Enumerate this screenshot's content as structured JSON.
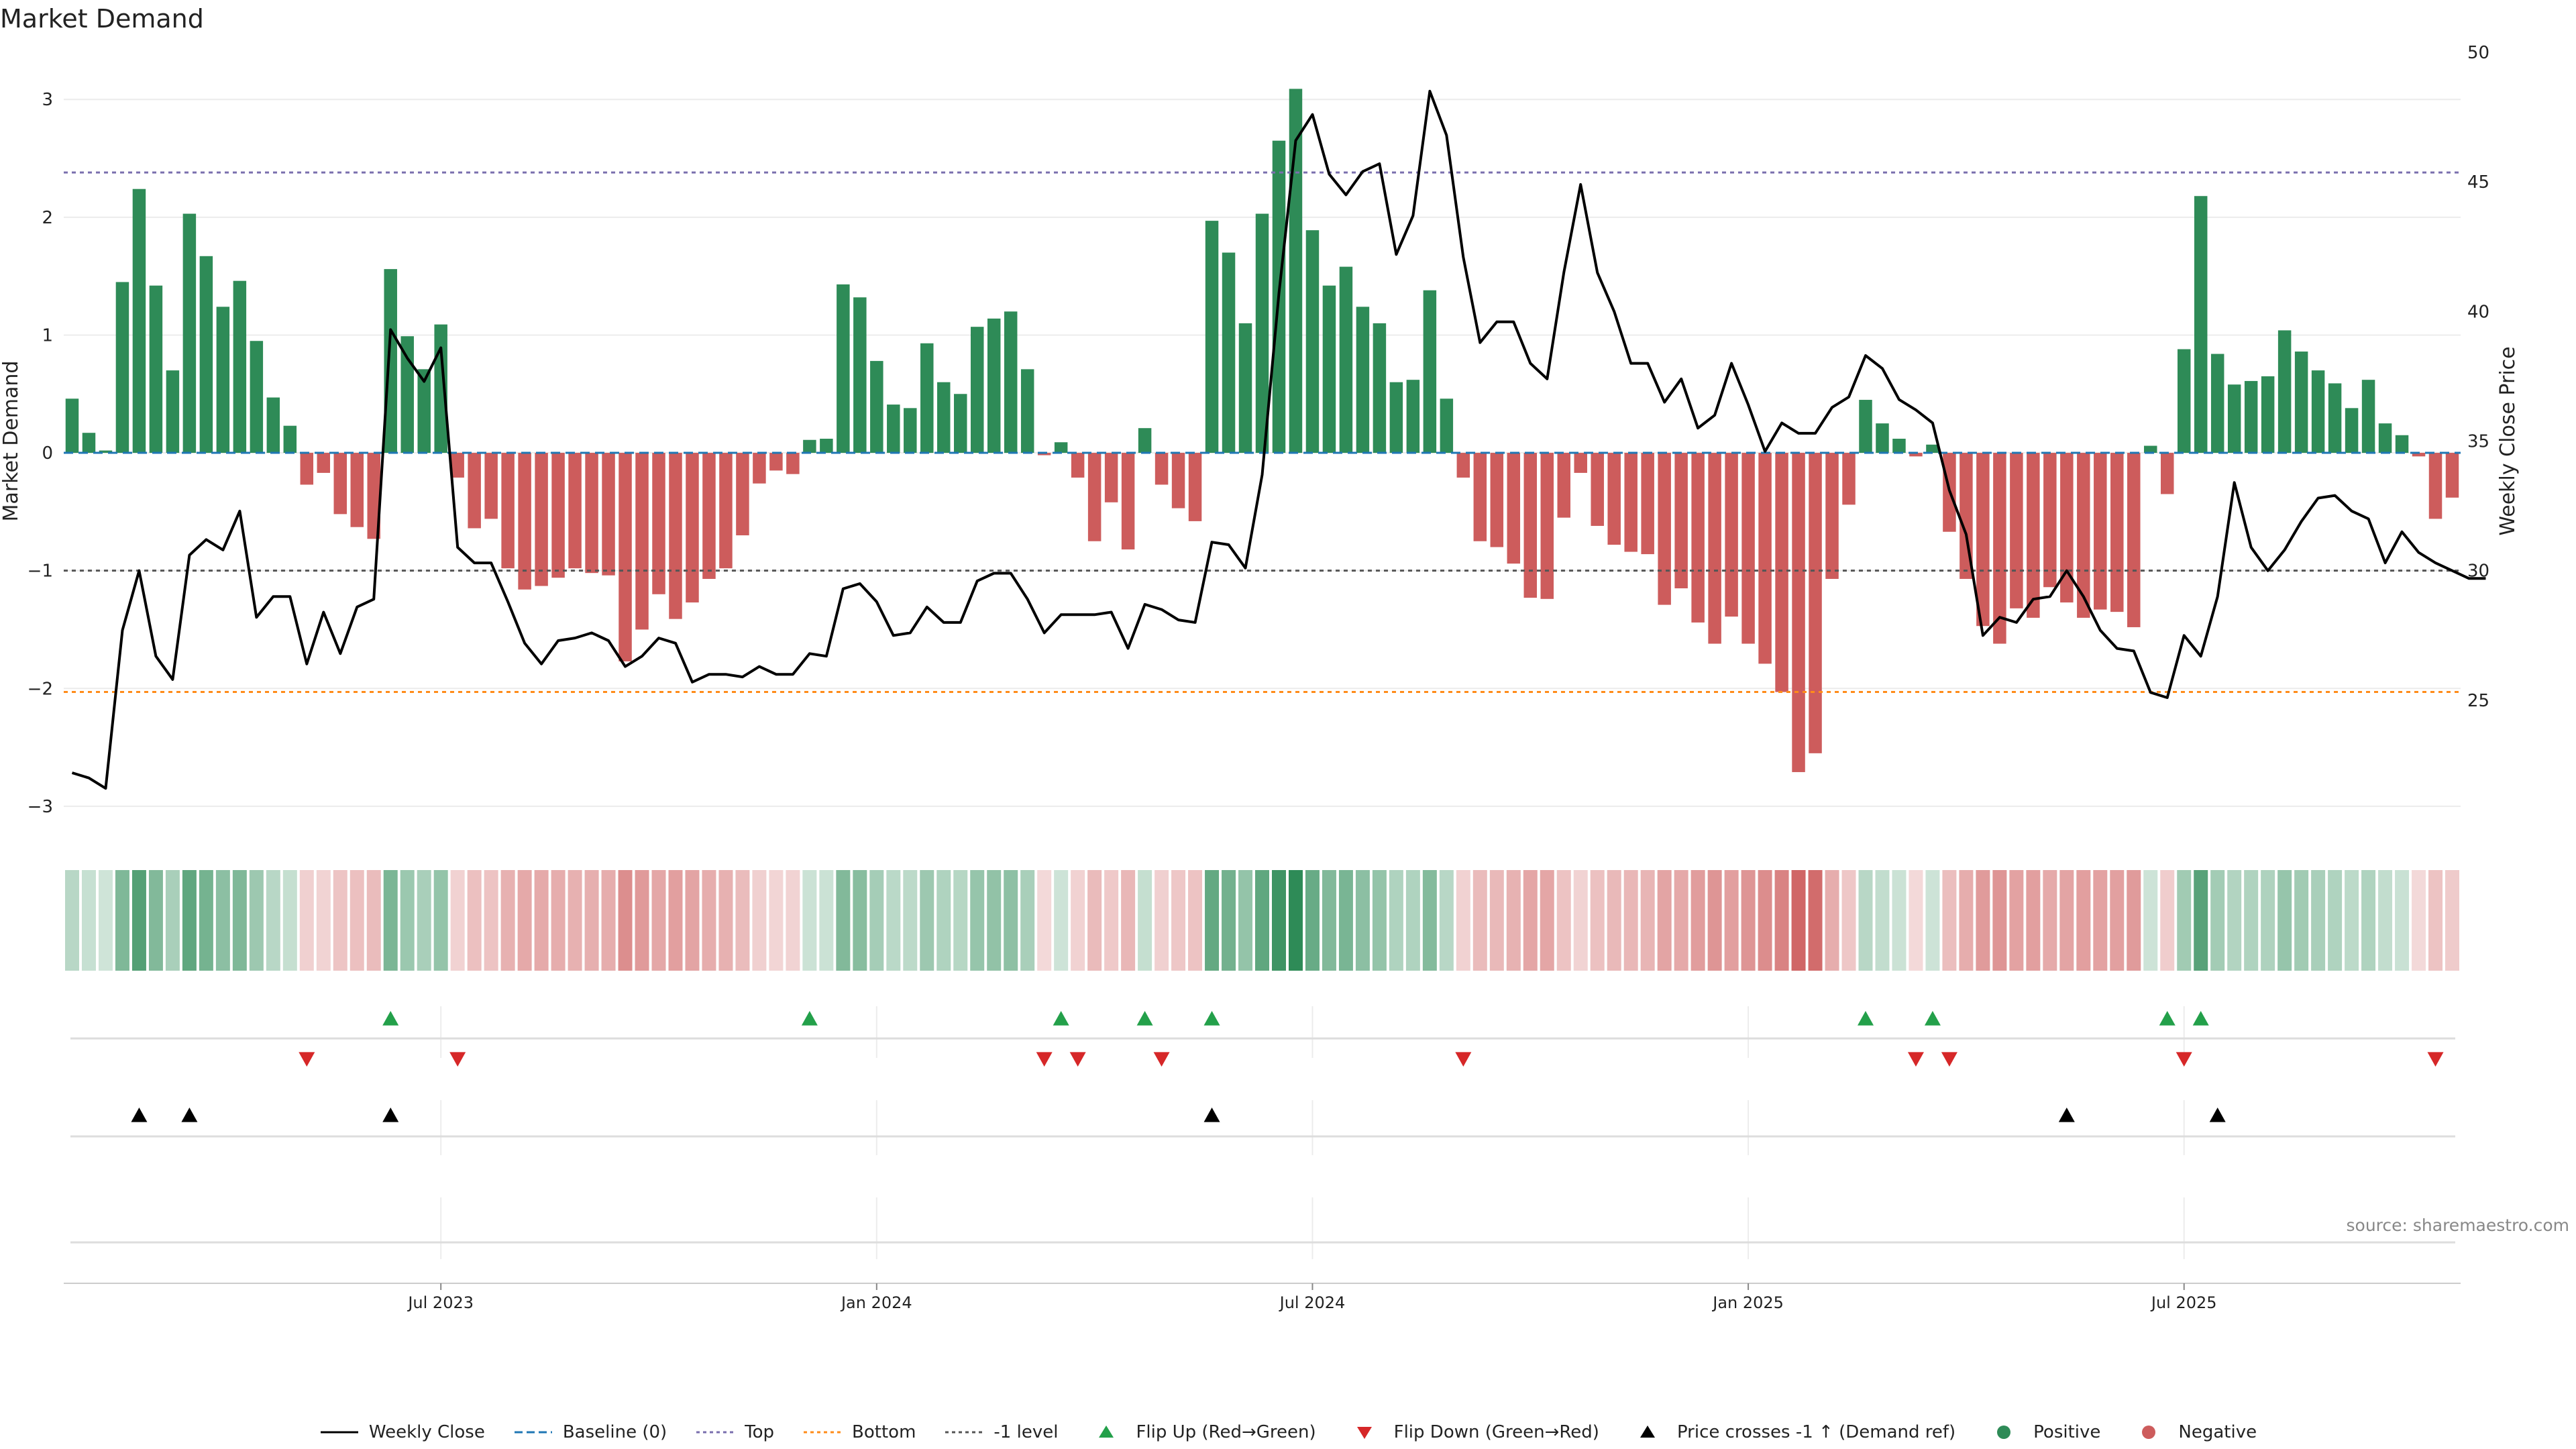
{
  "title": "Market Demand",
  "source": "source: sharemaestro.com",
  "colors": {
    "positive": "#2e8b57",
    "negative": "#cd5c5c",
    "price": "#000000",
    "top": "#7a6fae",
    "bottom": "#ff8c1a",
    "level": "#555555",
    "baseline": "#1f77b4",
    "flip_up": "#23a04a",
    "flip_down": "#d62728",
    "cross": "#000000"
  },
  "legend": [
    {
      "label": "Weekly Close",
      "icon": "line-solid-icon"
    },
    {
      "label": "Baseline (0)",
      "icon": "line-dashed-icon"
    },
    {
      "label": "Top",
      "icon": "line-dotted-icon"
    },
    {
      "label": "Bottom",
      "icon": "line-dotted-icon"
    },
    {
      "label": "-1 level",
      "icon": "line-dotted-icon"
    },
    {
      "label": "Flip Up (Red→Green)",
      "icon": "triangle-up-icon"
    },
    {
      "label": "Flip Down (Green→Red)",
      "icon": "triangle-down-icon"
    },
    {
      "label": "Price crosses -1 ↑ (Demand ref)",
      "icon": "triangle-up-icon"
    },
    {
      "label": "Positive",
      "icon": "dot-icon"
    },
    {
      "label": "Negative",
      "icon": "dot-icon"
    }
  ],
  "chart_data": {
    "type": "bar",
    "title": "Market Demand",
    "ylabel": "Market Demand",
    "y2label": "Weekly Close Price",
    "ylim": [
      -3.2,
      3.4
    ],
    "y2lim": [
      20,
      50
    ],
    "yticks": [
      -3,
      -2,
      -1,
      0,
      1,
      2,
      3
    ],
    "yticklabels": [
      "−3",
      "−2",
      "−1",
      "0",
      "1",
      "2",
      "3"
    ],
    "y2ticks": [
      25,
      30,
      35,
      40,
      45,
      50
    ],
    "y2ticklabels": [
      "25",
      "30",
      "35",
      "40",
      "45",
      "50"
    ],
    "reference_lines": {
      "top": 2.38,
      "bottom": -2.03,
      "minus_one": -1.0,
      "baseline": 0
    },
    "xticks": [
      {
        "label": "Jul 2023",
        "week": 22
      },
      {
        "label": "Jan 2024",
        "week": 48
      },
      {
        "label": "Jul 2024",
        "week": 74
      },
      {
        "label": "Jan 2025",
        "week": 100
      },
      {
        "label": "Jul 2025",
        "week": 126
      }
    ],
    "demand": [
      0.46,
      0.17,
      0.02,
      1.45,
      2.24,
      1.42,
      0.7,
      2.03,
      1.67,
      1.24,
      1.46,
      0.95,
      0.47,
      0.23,
      -0.27,
      -0.17,
      -0.52,
      -0.63,
      -0.73,
      1.56,
      0.99,
      0.71,
      1.09,
      -0.21,
      -0.64,
      -0.56,
      -0.98,
      -1.16,
      -1.13,
      -1.06,
      -0.98,
      -1.02,
      -1.04,
      -1.77,
      -1.5,
      -1.2,
      -1.41,
      -1.27,
      -1.07,
      -0.98,
      -0.7,
      -0.26,
      -0.15,
      -0.18,
      0.11,
      0.12,
      1.43,
      1.32,
      0.78,
      0.41,
      0.38,
      0.93,
      0.6,
      0.5,
      1.07,
      1.14,
      1.2,
      0.71,
      -0.02,
      0.09,
      -0.21,
      -0.75,
      -0.42,
      -0.82,
      0.21,
      -0.27,
      -0.47,
      -0.58,
      1.97,
      1.7,
      1.1,
      2.03,
      2.65,
      3.09,
      1.89,
      1.42,
      1.58,
      1.24,
      1.1,
      0.6,
      0.62,
      1.38,
      0.46,
      -0.21,
      -0.75,
      -0.8,
      -0.94,
      -1.23,
      -1.24,
      -0.55,
      -0.17,
      -0.62,
      -0.78,
      -0.84,
      -0.86,
      -1.29,
      -1.15,
      -1.44,
      -1.62,
      -1.39,
      -1.62,
      -1.79,
      -2.03,
      -2.71,
      -2.55,
      -1.07,
      -0.44,
      0.45,
      0.25,
      0.12,
      -0.03,
      0.07,
      -0.67,
      -1.07,
      -1.47,
      -1.62,
      -1.32,
      -1.4,
      -1.14,
      -1.27,
      -1.4,
      -1.33,
      -1.35,
      -1.48,
      0.06,
      -0.35,
      0.88,
      2.18,
      0.84,
      0.58,
      0.61,
      0.65,
      1.04,
      0.86,
      0.7,
      0.59,
      0.38,
      0.62,
      0.25,
      0.15,
      -0.03,
      -0.56,
      -0.38
    ],
    "price": [
      22.2,
      22.0,
      21.6,
      27.7,
      30.0,
      26.7,
      25.8,
      30.6,
      31.2,
      30.8,
      32.3,
      28.2,
      29.0,
      29.0,
      26.4,
      28.4,
      26.8,
      28.6,
      28.9,
      39.3,
      38.2,
      37.3,
      38.6,
      30.9,
      30.3,
      30.3,
      28.8,
      27.2,
      26.4,
      27.3,
      27.4,
      27.6,
      27.3,
      26.3,
      26.7,
      27.4,
      27.2,
      25.7,
      26.0,
      26.0,
      25.9,
      26.3,
      26.0,
      26.0,
      26.8,
      26.7,
      29.3,
      29.5,
      28.8,
      27.5,
      27.6,
      28.6,
      28.0,
      28.0,
      29.6,
      29.9,
      29.9,
      28.9,
      27.6,
      28.3,
      28.3,
      28.3,
      28.4,
      27.0,
      28.7,
      28.5,
      28.1,
      28.0,
      31.1,
      31.0,
      30.1,
      33.7,
      40.7,
      46.6,
      47.6,
      45.3,
      44.5,
      45.4,
      45.7,
      42.2,
      43.7,
      48.5,
      46.8,
      42.1,
      38.8,
      39.6,
      39.6,
      38.0,
      37.4,
      41.5,
      44.9,
      41.5,
      40.0,
      38.0,
      38.0,
      36.5,
      37.4,
      35.5,
      36.0,
      38.0,
      36.4,
      34.6,
      35.7,
      35.3,
      35.3,
      36.3,
      36.7,
      38.3,
      37.8,
      36.6,
      36.2,
      35.7,
      33.1,
      31.4,
      27.5,
      28.2,
      28.0,
      28.9,
      29.0,
      30.0,
      29.0,
      27.7,
      27.0,
      26.9,
      25.3,
      25.1,
      27.5,
      26.7,
      29.0,
      33.4,
      30.9,
      30.0,
      30.8,
      31.9,
      32.8,
      32.9,
      32.3,
      32.0,
      30.3,
      31.5,
      30.7,
      30.3,
      30.0,
      29.7,
      29.7
    ]
  },
  "flip_up_weeks": [
    19,
    44,
    59,
    64,
    68,
    107,
    111,
    125,
    127
  ],
  "flip_down_weeks": [
    14,
    23,
    58,
    60,
    65,
    83,
    110,
    112,
    126,
    141
  ],
  "price_cross_weeks": [
    4,
    7,
    19,
    68,
    119,
    128
  ]
}
